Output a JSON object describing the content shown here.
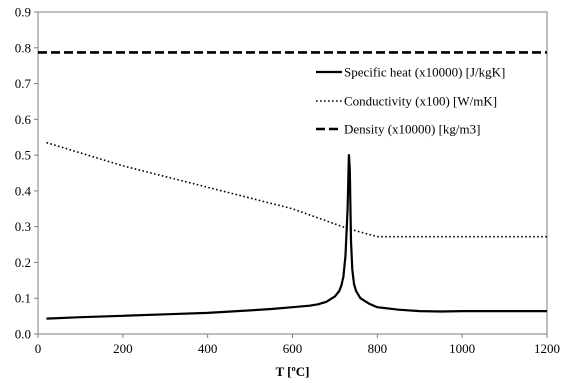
{
  "chart_data": {
    "type": "line",
    "title": "",
    "xlabel": "T [ºC]",
    "ylabel": "",
    "xlim": [
      0,
      1200
    ],
    "ylim": [
      0,
      0.9
    ],
    "xticks": [
      0,
      200,
      400,
      600,
      800,
      1000,
      1200
    ],
    "xtick_labels": [
      "0",
      "200",
      "400",
      "600",
      "800",
      "1000",
      "1200"
    ],
    "yticks": [
      0,
      0.1,
      0.2,
      0.3,
      0.4,
      0.5,
      0.6,
      0.7,
      0.8,
      0.9
    ],
    "ytick_labels": [
      "0.0",
      "0.1",
      "0.2",
      "0.3",
      "0.4",
      "0.5",
      "0.6",
      "0.7",
      "0.8",
      "0.9"
    ],
    "grid": false,
    "legend_position": "top-right",
    "series": [
      {
        "name": "Specific heat (x10000) [J/kgK]",
        "style": "solid",
        "color": "#000000",
        "x": [
          20,
          100,
          200,
          300,
          400,
          500,
          550,
          600,
          640,
          660,
          680,
          700,
          710,
          715,
          720,
          725,
          730,
          733,
          735,
          738,
          741,
          745,
          750,
          760,
          780,
          800,
          850,
          900,
          950,
          1000,
          1100,
          1200
        ],
        "y": [
          0.043,
          0.047,
          0.051,
          0.055,
          0.059,
          0.066,
          0.07,
          0.075,
          0.079,
          0.083,
          0.09,
          0.105,
          0.12,
          0.135,
          0.16,
          0.22,
          0.35,
          0.5,
          0.46,
          0.26,
          0.18,
          0.14,
          0.12,
          0.1,
          0.085,
          0.075,
          0.068,
          0.064,
          0.063,
          0.064,
          0.064,
          0.064
        ]
      },
      {
        "name": "Conductivity (x100) [W/mK]",
        "style": "dotted",
        "color": "#000000",
        "x": [
          20,
          200,
          400,
          600,
          730,
          800,
          900,
          1000,
          1100,
          1200
        ],
        "y": [
          0.535,
          0.47,
          0.41,
          0.35,
          0.295,
          0.272,
          0.272,
          0.272,
          0.272,
          0.272
        ]
      },
      {
        "name": "Density (x10000) [kg/m3]",
        "style": "dashed",
        "color": "#000000",
        "x": [
          0,
          1200
        ],
        "y": [
          0.787,
          0.787
        ]
      }
    ]
  }
}
